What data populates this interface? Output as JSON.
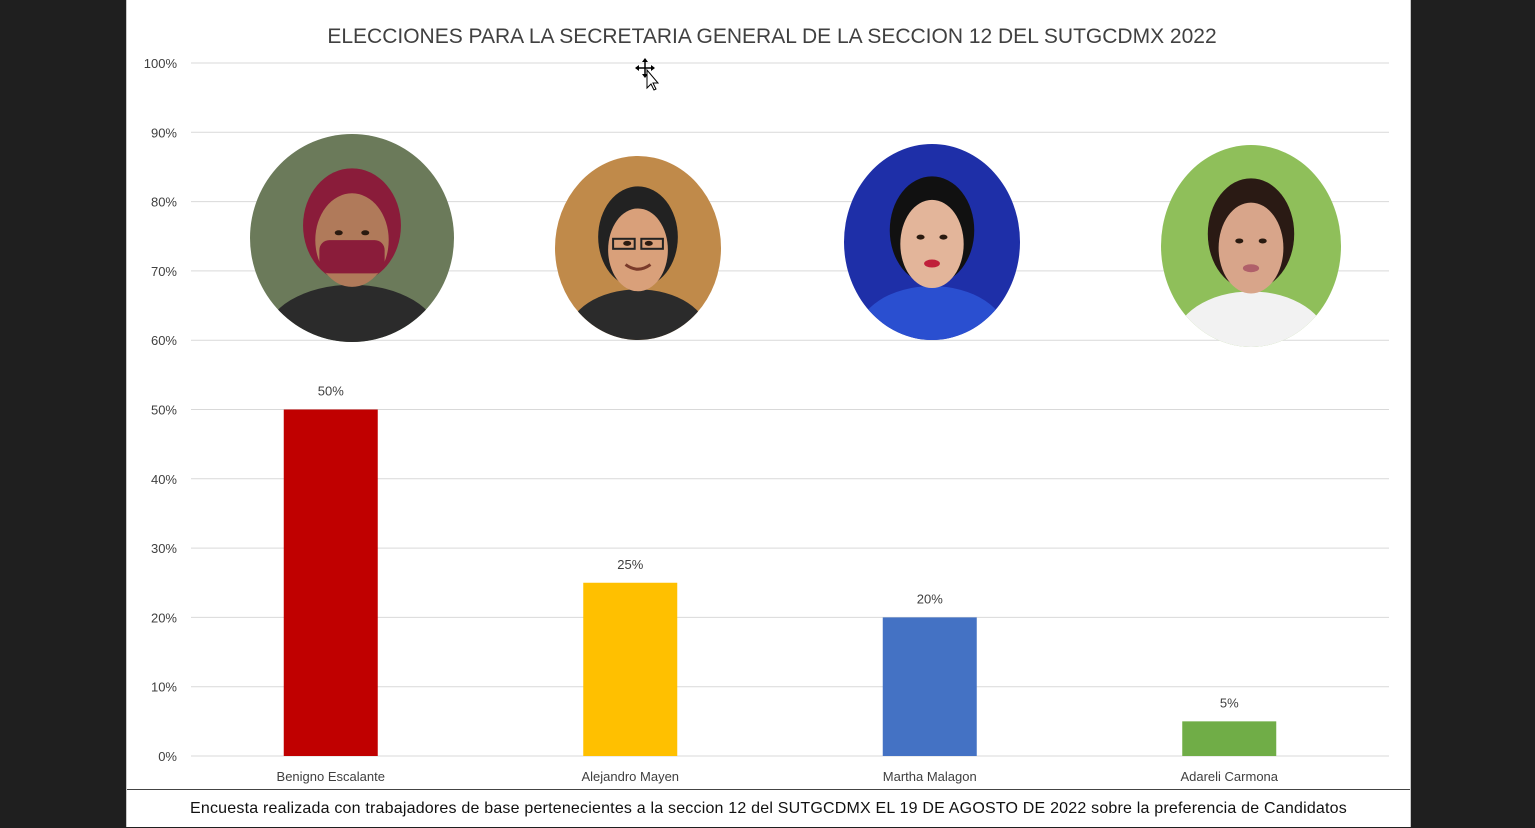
{
  "colors": {
    "background": "#1f1f1f",
    "plot_bg": "#ffffff",
    "gridline": "#d9d9d9",
    "text": "#404040"
  },
  "chart_data": {
    "type": "bar",
    "title": "ELECCIONES PARA LA SECRETARIA GENERAL DE LA SECCION 12 DEL SUTGCDMX 2022",
    "categories": [
      "Benigno Escalante",
      "Alejandro Mayen",
      "Martha Malagon",
      "Adareli Carmona"
    ],
    "values": [
      50,
      25,
      20,
      5
    ],
    "data_labels": [
      "50%",
      "25%",
      "20%",
      "5%"
    ],
    "bar_colors": [
      "#c00000",
      "#ffc000",
      "#4472c4",
      "#70ad47"
    ],
    "ylim": [
      0,
      100
    ],
    "yticks": [
      "0%",
      "10%",
      "20%",
      "30%",
      "40%",
      "50%",
      "60%",
      "70%",
      "80%",
      "90%",
      "100%"
    ],
    "grid": true,
    "legend": "none",
    "candidate_photos": [
      {
        "icon": "portrait-man-mask",
        "bg": "#6b7a5a",
        "skin": "#b07a5a",
        "accent": "#8a1c3a"
      },
      {
        "icon": "portrait-man-glasses",
        "bg": "#c08a4a",
        "skin": "#d9a07a",
        "accent": "#222222"
      },
      {
        "icon": "portrait-woman-dark-hair",
        "bg": "#1e2fa8",
        "skin": "#e3b59a",
        "accent": "#111111"
      },
      {
        "icon": "portrait-woman-smile",
        "bg": "#8fbf5a",
        "skin": "#d8a58a",
        "accent": "#2a1a14"
      }
    ]
  },
  "footer": {
    "text": "Encuesta realizada con trabajadores de base pertenecientes a la seccion 12 del SUTGCDMX EL 19 DE AGOSTO DE 2022 sobre la preferencia de Candidatos"
  }
}
